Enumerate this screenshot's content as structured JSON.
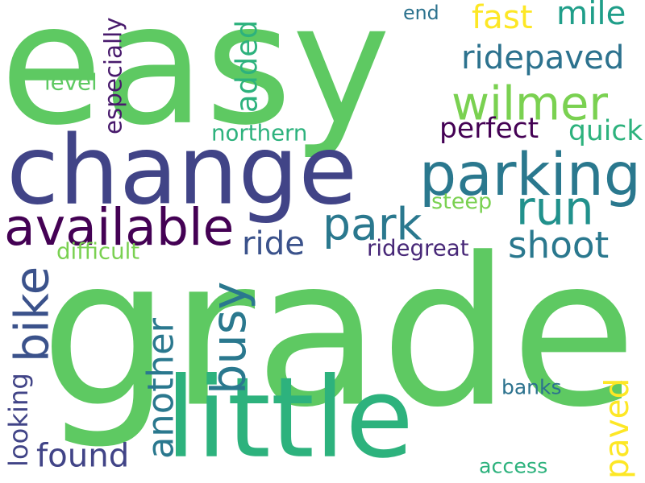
{
  "word_cloud": {
    "background": "#ffffff",
    "words": [
      {
        "text": "easy",
        "color": "#5ec962",
        "orientation": "horizontal"
      },
      {
        "text": "grade",
        "color": "#5ec962",
        "orientation": "horizontal"
      },
      {
        "text": "change",
        "color": "#414487",
        "orientation": "horizontal"
      },
      {
        "text": "little",
        "color": "#2db27d",
        "orientation": "horizontal"
      },
      {
        "text": "parking",
        "color": "#2a788e",
        "orientation": "horizontal"
      },
      {
        "text": "available",
        "color": "#440154",
        "orientation": "horizontal"
      },
      {
        "text": "wilmer",
        "color": "#7ad151",
        "orientation": "horizontal"
      },
      {
        "text": "park",
        "color": "#2a788e",
        "orientation": "horizontal"
      },
      {
        "text": "run",
        "color": "#21918c",
        "orientation": "horizontal"
      },
      {
        "text": "bike",
        "color": "#3b528b",
        "orientation": "vertical"
      },
      {
        "text": "busy",
        "color": "#2a788e",
        "orientation": "vertical"
      },
      {
        "text": "another",
        "color": "#2a788e",
        "orientation": "vertical"
      },
      {
        "text": "ridepaved",
        "color": "#2c728e",
        "orientation": "horizontal"
      },
      {
        "text": "ride",
        "color": "#3b528b",
        "orientation": "horizontal"
      },
      {
        "text": "shoot",
        "color": "#2a788e",
        "orientation": "horizontal"
      },
      {
        "text": "found",
        "color": "#414487",
        "orientation": "horizontal"
      },
      {
        "text": "added",
        "color": "#2db27d",
        "orientation": "vertical"
      },
      {
        "text": "fast",
        "color": "#fde725",
        "orientation": "horizontal"
      },
      {
        "text": "mile",
        "color": "#1f9e89",
        "orientation": "horizontal"
      },
      {
        "text": "paved",
        "color": "#fde725",
        "orientation": "vertical"
      },
      {
        "text": "perfect",
        "color": "#440154",
        "orientation": "horizontal"
      },
      {
        "text": "quick",
        "color": "#2db27d",
        "orientation": "horizontal"
      },
      {
        "text": "looking",
        "color": "#414487",
        "orientation": "vertical"
      },
      {
        "text": "especially",
        "color": "#481a6c",
        "orientation": "vertical"
      },
      {
        "text": "ridegreat",
        "color": "#482878",
        "orientation": "horizontal"
      },
      {
        "text": "difficult",
        "color": "#7ad151",
        "orientation": "horizontal"
      },
      {
        "text": "northern",
        "color": "#2db27d",
        "orientation": "horizontal"
      },
      {
        "text": "steep",
        "color": "#7ad151",
        "orientation": "horizontal"
      },
      {
        "text": "level",
        "color": "#5ec962",
        "orientation": "horizontal"
      },
      {
        "text": "banks",
        "color": "#2c728e",
        "orientation": "horizontal"
      },
      {
        "text": "access",
        "color": "#2db27d",
        "orientation": "horizontal"
      },
      {
        "text": "end",
        "color": "#2c728e",
        "orientation": "horizontal"
      }
    ]
  }
}
